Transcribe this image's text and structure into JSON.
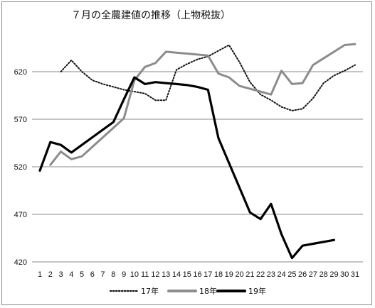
{
  "chart_data": {
    "type": "line",
    "title": "７月の全農建値の推移（上物税抜）",
    "xlabel": "",
    "ylabel": "",
    "ylim": [
      420,
      645
    ],
    "grid": true,
    "legend_position": "bottom",
    "x": [
      1,
      2,
      3,
      4,
      5,
      6,
      7,
      8,
      9,
      10,
      11,
      12,
      13,
      14,
      15,
      16,
      17,
      18,
      19,
      20,
      21,
      22,
      23,
      24,
      25,
      26,
      27,
      28,
      29,
      30,
      31
    ],
    "y_ticks": [
      420,
      470,
      520,
      570,
      620
    ],
    "series": [
      {
        "name": "17年",
        "style": "dotted",
        "color": "#111111",
        "values": [
          null,
          null,
          620,
          632,
          620,
          611,
          607,
          604,
          601,
          599,
          597,
          590,
          590,
          622,
          628,
          633,
          636,
          642,
          648,
          630,
          609,
          596,
          590,
          583,
          579,
          581,
          592,
          608,
          616,
          621,
          627
        ]
      },
      {
        "name": "18年",
        "style": "solid",
        "color": "#8c8c8c",
        "values": [
          null,
          522,
          536,
          528,
          531,
          541,
          551,
          561,
          571,
          611,
          625,
          629,
          641,
          640,
          639,
          638,
          637,
          618,
          614,
          605,
          602,
          599,
          596,
          621,
          607,
          608,
          627,
          634,
          641,
          648,
          649
        ]
      },
      {
        "name": "19年",
        "style": "solid",
        "color": "#000000",
        "values": [
          516,
          546,
          543,
          535,
          543,
          551,
          559,
          567,
          591,
          614,
          607,
          609,
          608,
          607,
          606,
          604,
          601,
          550,
          524,
          498,
          472,
          465,
          481,
          449,
          424,
          437,
          439,
          null,
          443,
          null,
          null
        ]
      }
    ]
  }
}
